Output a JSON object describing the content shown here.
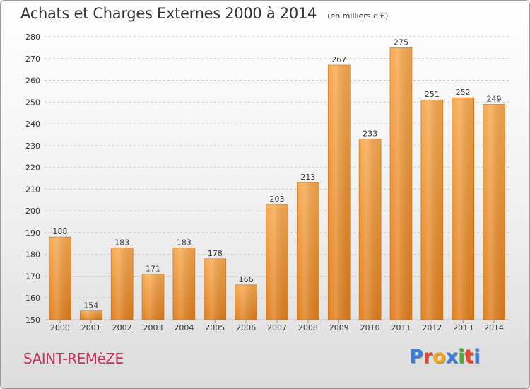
{
  "header": {
    "title": "Achats et Charges Externes 2000 à 2014",
    "subtitle": "(en milliers d'€)"
  },
  "footer": {
    "commune": "SAINT-REMèZE",
    "logo_text": "Proxiti"
  },
  "colors": {
    "bar_light": "#f7a94f",
    "bar_dark": "#e07f1e",
    "bar_edge": "#c96a10",
    "grid": "#c8c8c8",
    "logo_letters": [
      "#3b7dd8",
      "#e8462c",
      "#f4a21a",
      "#3b7dd8",
      "#4caa3c",
      "#e8462c",
      "#3b7dd8"
    ]
  },
  "chart_data": {
    "type": "bar",
    "categories": [
      "2000",
      "2001",
      "2002",
      "2003",
      "2004",
      "2005",
      "2006",
      "2007",
      "2008",
      "2009",
      "2010",
      "2011",
      "2012",
      "2013",
      "2014"
    ],
    "values": [
      188,
      154,
      183,
      171,
      183,
      178,
      166,
      203,
      213,
      267,
      233,
      275,
      251,
      252,
      249
    ],
    "ylim": [
      150,
      280
    ],
    "yticks": [
      150,
      160,
      170,
      180,
      190,
      200,
      210,
      220,
      230,
      240,
      250,
      260,
      270,
      280
    ],
    "grid": true
  }
}
